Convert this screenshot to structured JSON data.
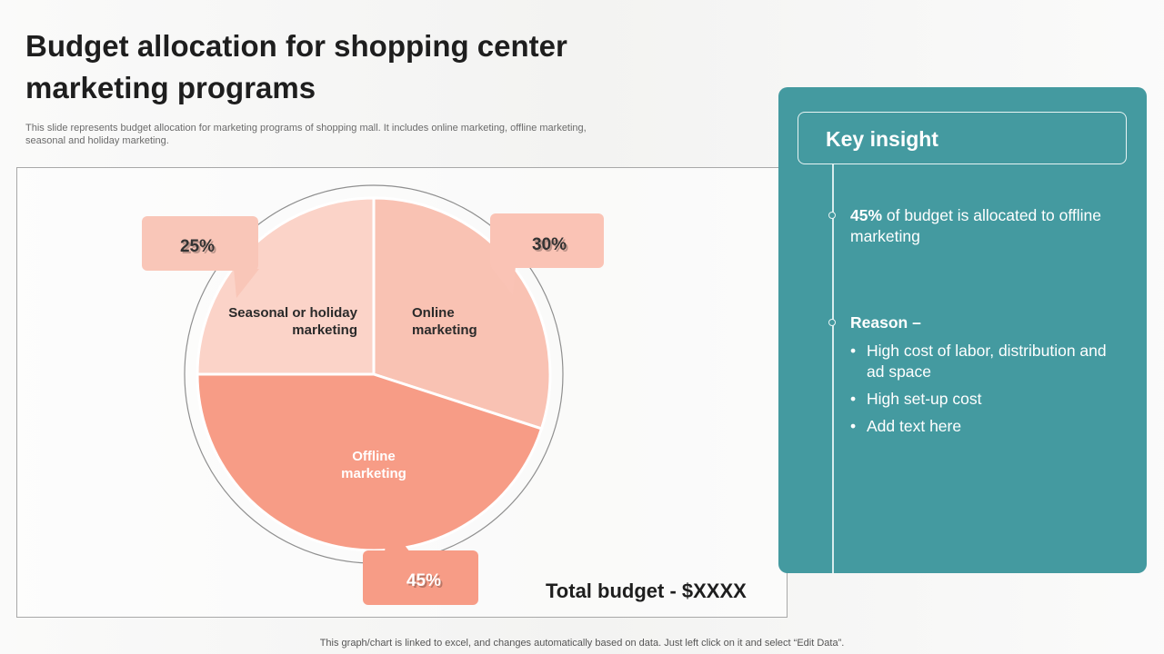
{
  "title": "Budget allocation for shopping center marketing programs",
  "subtitle": "This slide represents budget allocation for marketing programs of shopping mall. It includes online marketing, offline marketing, seasonal and holiday marketing.",
  "total_budget": "Total budget - $XXXX",
  "footer": "This graph/chart is linked to excel, and changes automatically based on data. Just left click on it and select “Edit Data”.",
  "colors": {
    "online": "#f9c2b3",
    "offline": "#f79c86",
    "seasonal": "#fbd3c8",
    "panel": "#449aa0"
  },
  "chart_data": {
    "type": "pie",
    "slices": [
      {
        "label": "Online marketing",
        "label_lines": [
          "Online",
          "marketing"
        ],
        "value": 30,
        "value_label": "30%"
      },
      {
        "label": "Offline marketing",
        "label_lines": [
          "Offline",
          "marketing"
        ],
        "value": 45,
        "value_label": "45%"
      },
      {
        "label": "Seasonal or holiday marketing",
        "label_lines": [
          "Seasonal or holiday",
          "marketing"
        ],
        "value": 25,
        "value_label": "25%"
      }
    ]
  },
  "insight": {
    "title": "Key insight",
    "point1_bold": "45%",
    "point1_rest": " of budget is allocated to offline marketing",
    "reason_title": "Reason –",
    "reasons": [
      "High cost of labor, distribution and ad space",
      "High set-up cost",
      "Add text here"
    ]
  }
}
